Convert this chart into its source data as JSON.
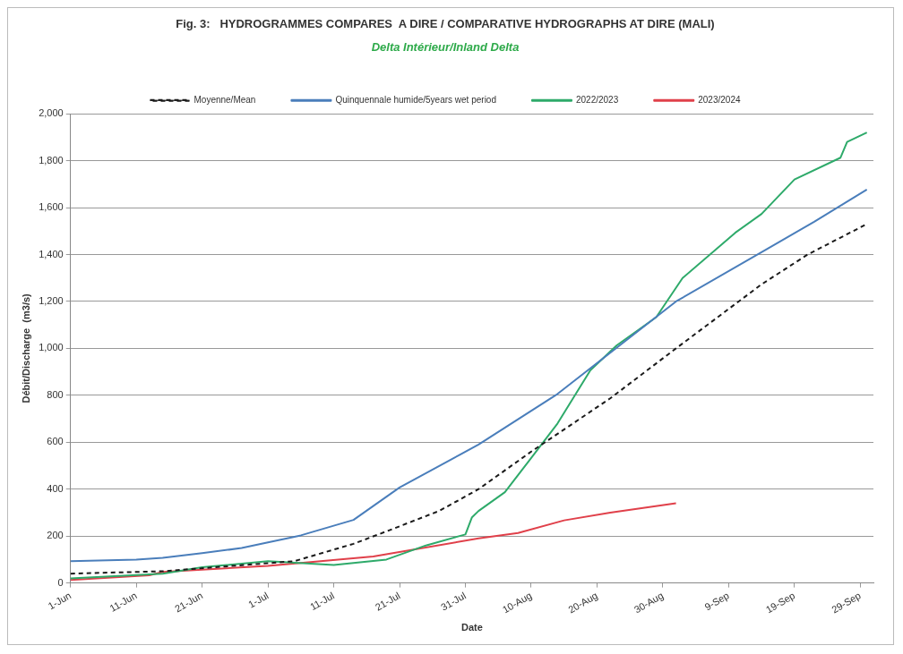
{
  "chart_data": {
    "type": "line",
    "title": "Fig. 3:   HYDROGRAMMES COMPARES  A DIRE / COMPARATIVE HYDROGRAPHS AT DIRE (MALI)",
    "subtitle": "Delta Intérieur/Inland Delta",
    "xlabel": "Date",
    "ylabel": "Débit/Discharge  (m3/s)",
    "xlim": [
      "--06-01",
      "--10-01"
    ],
    "xticks": [
      {
        "value": "--06-01",
        "label": "1-Jun"
      },
      {
        "value": "--06-11",
        "label": "11-Jun"
      },
      {
        "value": "--06-21",
        "label": "21-Jun"
      },
      {
        "value": "--07-01",
        "label": "1-Jul"
      },
      {
        "value": "--07-11",
        "label": "11-Jul"
      },
      {
        "value": "--07-21",
        "label": "21-Jul"
      },
      {
        "value": "--07-31",
        "label": "31-Jul"
      },
      {
        "value": "--08-10",
        "label": "10-Aug"
      },
      {
        "value": "--08-20",
        "label": "20-Aug"
      },
      {
        "value": "--08-30",
        "label": "30-Aug"
      },
      {
        "value": "--09-09",
        "label": "9-Sep"
      },
      {
        "value": "--09-19",
        "label": "19-Sep"
      },
      {
        "value": "--09-29",
        "label": "29-Sep"
      }
    ],
    "ylim": [
      0,
      2000
    ],
    "yticks": [
      0,
      200,
      400,
      600,
      800,
      {
        "value": 1000,
        "label": "1,000"
      },
      {
        "value": 1200,
        "label": "1,200"
      },
      {
        "value": 1400,
        "label": "1,400"
      },
      {
        "value": 1600,
        "label": "1,600"
      },
      {
        "value": 1800,
        "label": "1,800"
      },
      {
        "value": 2000,
        "label": "2,000"
      }
    ],
    "grid": "y",
    "legend": "top",
    "marker": "none",
    "series": [
      {
        "name": "Moyenne/Mean",
        "color": "#1a1a1a",
        "line_style": "dashed",
        "x": [
          "--06-01",
          "--06-15",
          "--07-05",
          "--07-14",
          "--07-19",
          "--07-27",
          "--08-02",
          "--08-10",
          "--08-22",
          "--09-01",
          "--09-14",
          "--09-21",
          "--09-30"
        ],
        "values": [
          40,
          50,
          93,
          167,
          220,
          307,
          400,
          560,
          787,
          1000,
          1273,
          1400,
          1530
        ]
      },
      {
        "name": "Quinquennale humide/5years wet period",
        "color": "#4a7ebb",
        "line_style": "solid",
        "x": [
          "--06-01",
          "--06-11",
          "--06-15",
          "--06-21",
          "--06-27",
          "--07-01",
          "--07-06",
          "--07-14",
          "--07-21",
          "--08-02",
          "--08-14",
          "--09-01",
          "--09-15",
          "--09-22",
          "--09-30"
        ],
        "values": [
          93,
          100,
          107,
          127,
          149,
          173,
          203,
          269,
          407,
          590,
          806,
          1200,
          1426,
          1540,
          1677
        ]
      },
      {
        "name": "2022/2023",
        "color": "#2eaa6a",
        "line_style": "solid",
        "x": [
          "--06-01",
          "--06-15",
          "--06-21",
          "--07-01",
          "--07-11",
          "--07-19",
          "--07-25",
          "--07-31",
          "--08-01",
          "--08-02",
          "--08-06",
          "--08-10",
          "--08-14",
          "--08-19",
          "--08-23",
          "--08-29",
          "--09-02",
          "--09-10",
          "--09-14",
          "--09-19",
          "--09-26",
          "--09-27",
          "--09-30"
        ],
        "values": [
          20,
          40,
          67,
          93,
          77,
          100,
          160,
          207,
          280,
          307,
          387,
          533,
          680,
          907,
          1013,
          1133,
          1300,
          1493,
          1573,
          1720,
          1813,
          1880,
          1920
        ]
      },
      {
        "name": "2023/2024",
        "color": "#e0404a",
        "line_style": "solid",
        "x": [
          "--06-01",
          "--06-13",
          "--06-15",
          "--07-01",
          "--07-17",
          "--08-02",
          "--08-08",
          "--08-15",
          "--08-22",
          "--09-01"
        ],
        "values": [
          13,
          33,
          47,
          73,
          113,
          190,
          213,
          267,
          300,
          340
        ]
      }
    ]
  }
}
